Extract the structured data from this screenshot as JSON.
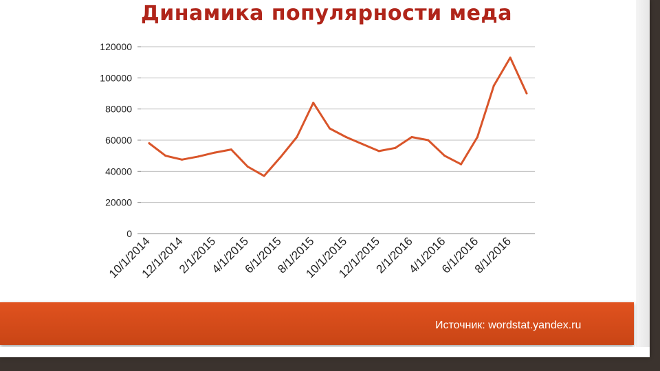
{
  "title": "Динамика популярности меда",
  "source": "Источник: wordstat.yandex.ru",
  "colors": {
    "title": "#b0251a",
    "line": "#d9552a",
    "banner": "#d94c1a"
  },
  "chart_data": {
    "type": "line",
    "title": "Динамика популярности меда",
    "ylim": [
      0,
      120000
    ],
    "y_ticks": [
      "0",
      "20000",
      "40000",
      "60000",
      "80000",
      "100000",
      "120000"
    ],
    "x_tick_labels": [
      "10/1/2014",
      "12/1/2014",
      "2/1/2015",
      "4/1/2015",
      "6/1/2015",
      "8/1/2015",
      "10/1/2015",
      "12/1/2015",
      "2/1/2016",
      "4/1/2016",
      "6/1/2016",
      "8/1/2016"
    ],
    "grid": true,
    "legend": "none",
    "series": [
      {
        "x": [
          "10/1/2014",
          "11/1/2014",
          "12/1/2014",
          "1/1/2015",
          "2/1/2015",
          "3/1/2015",
          "4/1/2015",
          "5/1/2015",
          "6/1/2015",
          "7/1/2015",
          "8/1/2015",
          "9/1/2015",
          "10/1/2015",
          "11/1/2015",
          "12/1/2015",
          "1/1/2016",
          "2/1/2016",
          "3/1/2016",
          "4/1/2016",
          "5/1/2016",
          "6/1/2016",
          "7/1/2016",
          "8/1/2016",
          "9/1/2016"
        ],
        "values": [
          58000,
          50000,
          47500,
          49500,
          52000,
          54000,
          43000,
          37000,
          49000,
          62000,
          84000,
          67500,
          62000,
          57500,
          53000,
          55000,
          62000,
          60000,
          50000,
          44500,
          62000,
          95000,
          113000,
          90000
        ]
      }
    ]
  }
}
